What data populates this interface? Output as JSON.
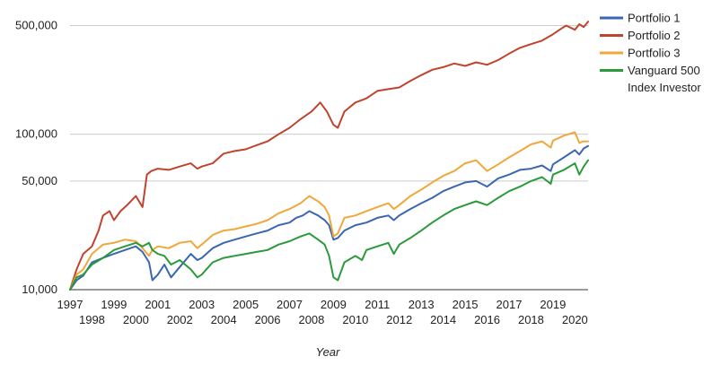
{
  "chart_data": {
    "type": "line",
    "title": "",
    "xlabel": "Year",
    "ylabel": "",
    "y_scale": "log",
    "ylim": [
      10000,
      560000
    ],
    "xlim": [
      1997.0,
      2020.6
    ],
    "grid": "horizontal",
    "legend_position": "right",
    "y_ticks": [
      {
        "value": 10000,
        "label": "10,000"
      },
      {
        "value": 50000,
        "label": "50,000"
      },
      {
        "value": 100000,
        "label": "100,000"
      },
      {
        "value": 500000,
        "label": "500,000"
      }
    ],
    "x_ticks_upper": [
      "1997",
      "1999",
      "2001",
      "2003",
      "2005",
      "2007",
      "2009",
      "2011",
      "2013",
      "2015",
      "2017",
      "2019"
    ],
    "x_ticks_lower": [
      "1998",
      "2000",
      "2002",
      "2004",
      "2006",
      "2008",
      "2010",
      "2012",
      "2014",
      "2016",
      "2018",
      "2020"
    ],
    "series": [
      {
        "name": "Portfolio 1",
        "color": "#3b66b0",
        "x": [
          1997.0,
          1997.3,
          1997.6,
          1998.0,
          1998.5,
          1999.0,
          1999.5,
          2000.0,
          2000.3,
          2000.6,
          2000.75,
          2001.0,
          2001.3,
          2001.6,
          2002.0,
          2002.5,
          2002.8,
          2003.0,
          2003.5,
          2004.0,
          2004.5,
          2005.0,
          2005.5,
          2006.0,
          2006.5,
          2007.0,
          2007.3,
          2007.6,
          2007.9,
          2008.3,
          2008.6,
          2008.8,
          2009.0,
          2009.2,
          2009.5,
          2010.0,
          2010.5,
          2011.0,
          2011.5,
          2011.75,
          2012.0,
          2012.5,
          2013.0,
          2013.5,
          2014.0,
          2014.5,
          2015.0,
          2015.5,
          2016.0,
          2016.5,
          2017.0,
          2017.5,
          2018.0,
          2018.5,
          2018.9,
          2019.0,
          2019.5,
          2020.0,
          2020.2,
          2020.4,
          2020.6
        ],
        "values": [
          10000,
          11500,
          12300,
          15000,
          16000,
          17000,
          18000,
          19000,
          17500,
          15000,
          11500,
          12500,
          14500,
          12000,
          14000,
          17000,
          15500,
          16000,
          18500,
          20000,
          21000,
          22000,
          23000,
          24000,
          26000,
          27000,
          29000,
          30000,
          32000,
          30000,
          28000,
          26000,
          21000,
          21500,
          24000,
          26000,
          27000,
          29000,
          30000,
          28000,
          30000,
          33000,
          36000,
          39000,
          43000,
          46000,
          49000,
          50000,
          46000,
          52000,
          55000,
          59000,
          60000,
          63000,
          58000,
          64000,
          71000,
          79000,
          74000,
          81000,
          84000
        ]
      },
      {
        "name": "Portfolio 2",
        "color": "#c0432f",
        "x": [
          1997.0,
          1997.3,
          1997.6,
          1998.0,
          1998.3,
          1998.5,
          1998.8,
          1999.0,
          1999.3,
          1999.6,
          2000.0,
          2000.3,
          2000.5,
          2000.7,
          2001.0,
          2001.5,
          2002.0,
          2002.5,
          2002.8,
          2003.0,
          2003.5,
          2004.0,
          2004.5,
          2005.0,
          2005.5,
          2006.0,
          2006.5,
          2007.0,
          2007.5,
          2008.0,
          2008.4,
          2008.7,
          2009.0,
          2009.2,
          2009.5,
          2010.0,
          2010.5,
          2011.0,
          2011.5,
          2012.0,
          2012.5,
          2013.0,
          2013.5,
          2014.0,
          2014.5,
          2015.0,
          2015.5,
          2016.0,
          2016.5,
          2017.0,
          2017.5,
          2018.0,
          2018.5,
          2019.0,
          2019.3,
          2019.6,
          2020.0,
          2020.2,
          2020.4,
          2020.6
        ],
        "values": [
          10000,
          13500,
          17000,
          19000,
          24000,
          30000,
          32000,
          28000,
          32000,
          35000,
          40000,
          34000,
          55000,
          58000,
          60000,
          59000,
          62000,
          65000,
          60000,
          62000,
          65000,
          75000,
          78000,
          80000,
          85000,
          90000,
          100000,
          110000,
          125000,
          140000,
          160000,
          140000,
          115000,
          110000,
          140000,
          160000,
          170000,
          190000,
          195000,
          200000,
          220000,
          240000,
          260000,
          270000,
          285000,
          275000,
          290000,
          280000,
          300000,
          330000,
          360000,
          380000,
          400000,
          440000,
          470000,
          500000,
          470000,
          510000,
          490000,
          530000
        ]
      },
      {
        "name": "Portfolio 3",
        "color": "#f0a83a",
        "x": [
          1997.0,
          1997.3,
          1997.6,
          1998.0,
          1998.5,
          1999.0,
          1999.5,
          2000.0,
          2000.3,
          2000.6,
          2000.75,
          2001.0,
          2001.5,
          2002.0,
          2002.5,
          2002.8,
          2003.0,
          2003.5,
          2004.0,
          2004.5,
          2005.0,
          2005.5,
          2006.0,
          2006.5,
          2007.0,
          2007.5,
          2007.9,
          2008.3,
          2008.6,
          2008.8,
          2009.0,
          2009.2,
          2009.5,
          2010.0,
          2010.5,
          2011.0,
          2011.5,
          2011.75,
          2012.0,
          2012.5,
          2013.0,
          2013.5,
          2014.0,
          2014.5,
          2015.0,
          2015.5,
          2016.0,
          2016.5,
          2017.0,
          2017.5,
          2018.0,
          2018.5,
          2018.9,
          2019.0,
          2019.5,
          2020.0,
          2020.2,
          2020.4,
          2020.6
        ],
        "values": [
          10000,
          12500,
          13500,
          17000,
          19500,
          20000,
          21000,
          20500,
          18500,
          16500,
          18000,
          19000,
          18500,
          20000,
          20500,
          18500,
          19500,
          22500,
          24000,
          24500,
          25500,
          26500,
          28000,
          31000,
          33000,
          36000,
          40000,
          37000,
          34000,
          30000,
          22000,
          23000,
          29000,
          30000,
          32000,
          34000,
          36000,
          33000,
          35000,
          40000,
          44000,
          49000,
          54000,
          58000,
          65000,
          68000,
          58000,
          64000,
          71000,
          78000,
          86000,
          90000,
          82000,
          91000,
          98000,
          103000,
          88000,
          90000,
          90000
        ]
      },
      {
        "name": "Vanguard 500 Index Investor",
        "color": "#2a9a3b",
        "x": [
          1997.0,
          1997.3,
          1997.6,
          1998.0,
          1998.5,
          1999.0,
          1999.5,
          2000.0,
          2000.3,
          2000.6,
          2000.75,
          2001.0,
          2001.3,
          2001.6,
          2002.0,
          2002.5,
          2002.8,
          2003.0,
          2003.5,
          2004.0,
          2004.5,
          2005.0,
          2005.5,
          2006.0,
          2006.5,
          2007.0,
          2007.5,
          2007.9,
          2008.3,
          2008.6,
          2008.8,
          2009.0,
          2009.2,
          2009.5,
          2010.0,
          2010.3,
          2010.5,
          2011.0,
          2011.5,
          2011.75,
          2012.0,
          2012.5,
          2013.0,
          2013.5,
          2014.0,
          2014.5,
          2015.0,
          2015.5,
          2016.0,
          2016.5,
          2017.0,
          2017.5,
          2018.0,
          2018.5,
          2018.9,
          2019.0,
          2019.5,
          2020.0,
          2020.2,
          2020.4,
          2020.6
        ],
        "values": [
          10000,
          12000,
          12500,
          14500,
          16000,
          18000,
          19000,
          20000,
          19000,
          20000,
          18000,
          17000,
          16500,
          14500,
          15500,
          13500,
          12000,
          12500,
          15000,
          16000,
          16500,
          17000,
          17500,
          18000,
          19500,
          20500,
          22000,
          23000,
          21000,
          19500,
          16500,
          12000,
          11500,
          15000,
          16500,
          15500,
          18000,
          19000,
          20000,
          17000,
          19500,
          21500,
          24000,
          27000,
          30000,
          33000,
          35000,
          37000,
          35000,
          39000,
          43000,
          46000,
          50000,
          53000,
          48000,
          55000,
          59000,
          65000,
          55000,
          62000,
          68000
        ]
      }
    ]
  }
}
